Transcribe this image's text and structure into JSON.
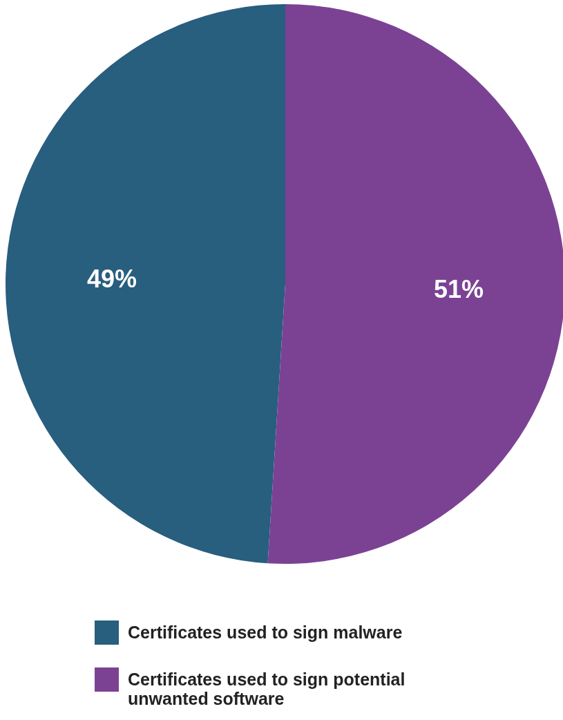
{
  "chart_data": {
    "type": "pie",
    "categories": [
      "Certificates used to sign malware",
      "Certificates used to sign potential unwanted software"
    ],
    "values": [
      49,
      51
    ],
    "colors": [
      "#285e7e",
      "#7b4294"
    ],
    "value_labels": [
      "49%",
      "51%"
    ],
    "legend": "bottom"
  }
}
